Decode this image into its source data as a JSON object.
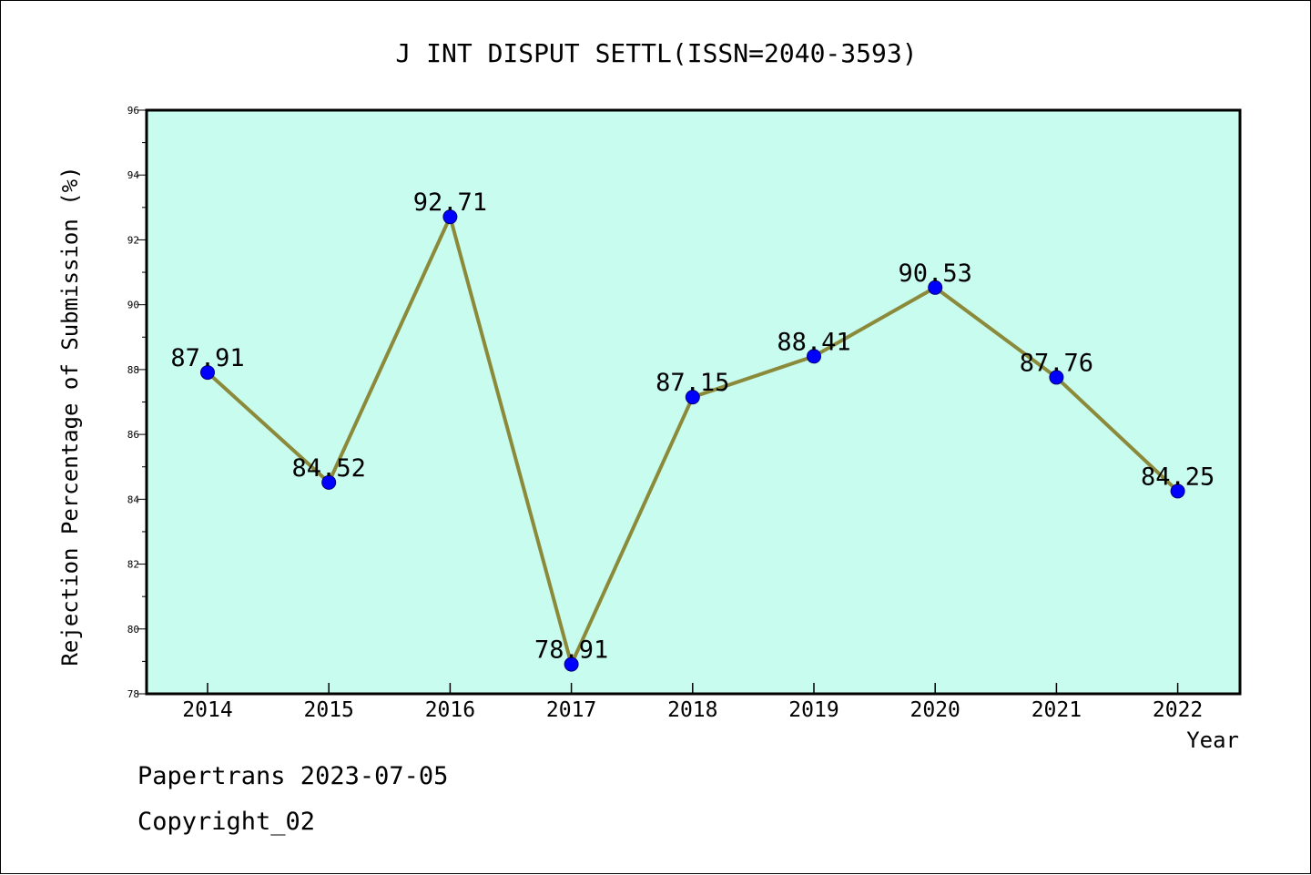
{
  "chart_data": {
    "type": "line",
    "title": "J INT DISPUT SETTL(ISSN=2040-3593)",
    "xlabel": "Year",
    "ylabel": "Rejection Percentage of Submission (%)",
    "categories": [
      "2014",
      "2015",
      "2016",
      "2017",
      "2018",
      "2019",
      "2020",
      "2021",
      "2022"
    ],
    "series": [
      {
        "values": [
          87.91,
          84.52,
          92.71,
          78.91,
          87.15,
          88.41,
          90.53,
          87.76,
          84.25
        ],
        "data_labels": [
          "87.91",
          "84.52",
          "92.71",
          "78.91",
          "87.15",
          "88.41",
          "90.53",
          "87.76",
          "84.25"
        ]
      }
    ],
    "ylim": [
      78,
      96
    ],
    "yticks": [
      "78",
      "80",
      "82",
      "84",
      "86",
      "88",
      "90",
      "92",
      "94",
      "96"
    ],
    "grid": false,
    "colors": {
      "plot_background": "#c8fcee",
      "line": "#8b8a3a",
      "marker": "#0000ff"
    }
  },
  "footer": {
    "line1": "Papertrans 2023-07-05",
    "line2": "Copyright_02"
  }
}
